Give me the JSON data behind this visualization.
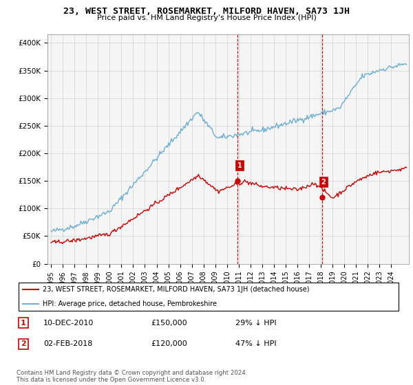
{
  "title": "23, WEST STREET, ROSEMARKET, MILFORD HAVEN, SA73 1JH",
  "subtitle": "Price paid vs. HM Land Registry's House Price Index (HPI)",
  "ylabel_ticks": [
    "£0",
    "£50K",
    "£100K",
    "£150K",
    "£200K",
    "£250K",
    "£300K",
    "£350K",
    "£400K"
  ],
  "ytick_values": [
    0,
    50000,
    100000,
    150000,
    200000,
    250000,
    300000,
    350000,
    400000
  ],
  "ylim": [
    0,
    415000
  ],
  "xlim_start": 1994.7,
  "xlim_end": 2025.5,
  "hpi_color": "#6baed6",
  "sale_color": "#cc0000",
  "vline_color": "#cc0000",
  "marker1_year": 2010.92,
  "marker2_year": 2018.08,
  "marker1_sale_price": 150000,
  "marker2_sale_price": 120000,
  "footnote": "Contains HM Land Registry data © Crown copyright and database right 2024.\nThis data is licensed under the Open Government Licence v3.0.",
  "legend_sale_label": "23, WEST STREET, ROSEMARKET, MILFORD HAVEN, SA73 1JH (detached house)",
  "legend_hpi_label": "HPI: Average price, detached house, Pembrokeshire",
  "table_row1": [
    "1",
    "10-DEC-2010",
    "£150,000",
    "29% ↓ HPI"
  ],
  "table_row2": [
    "2",
    "02-FEB-2018",
    "£120,000",
    "47% ↓ HPI"
  ]
}
